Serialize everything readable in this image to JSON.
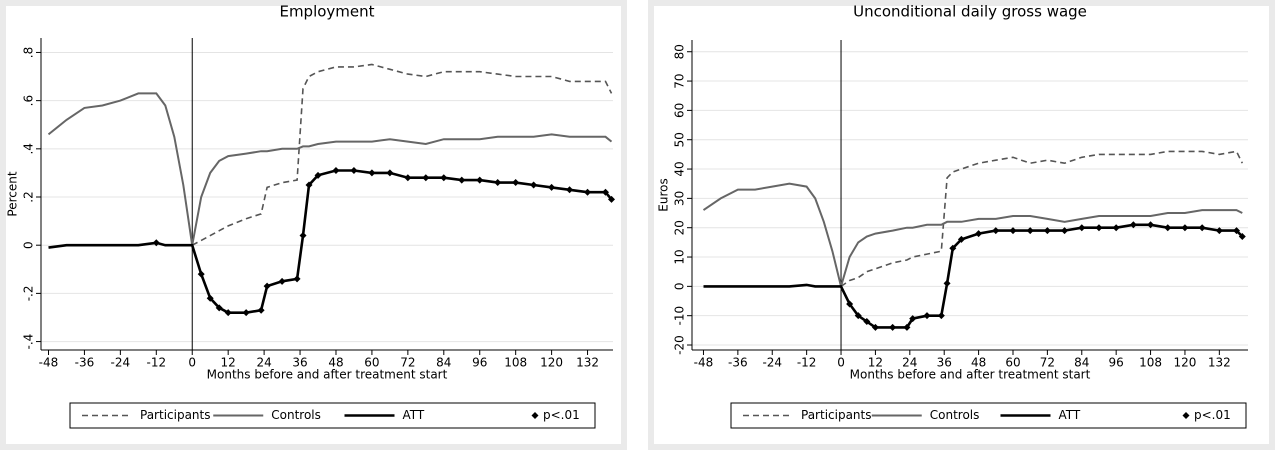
{
  "chart_data": [
    {
      "type": "line",
      "title": "Employment",
      "x_label": "Months before and after treatment start",
      "y_label": "Percent",
      "x": [
        -48,
        -42,
        -36,
        -30,
        -24,
        -18,
        -12,
        -9,
        -6,
        -3,
        0,
        3,
        6,
        9,
        12,
        18,
        23,
        25,
        30,
        35,
        37,
        39,
        42,
        48,
        54,
        60,
        66,
        72,
        78,
        84,
        90,
        96,
        102,
        108,
        114,
        120,
        126,
        132,
        138,
        140
      ],
      "series": [
        {
          "name": "Participants",
          "color": "#555555",
          "line_style": "dashed",
          "values": [
            null,
            null,
            null,
            null,
            null,
            null,
            null,
            null,
            null,
            null,
            0,
            0.02,
            0.04,
            0.06,
            0.08,
            0.11,
            0.13,
            0.24,
            0.26,
            0.27,
            0.65,
            0.7,
            0.72,
            0.74,
            0.74,
            0.75,
            0.73,
            0.71,
            0.7,
            0.72,
            0.72,
            0.72,
            0.71,
            0.7,
            0.7,
            0.7,
            0.68,
            0.68,
            0.68,
            0.63
          ]
        },
        {
          "name": "Controls",
          "color": "#666666",
          "line_style": "solid",
          "values": [
            0.46,
            0.52,
            0.57,
            0.58,
            0.6,
            0.63,
            0.63,
            0.58,
            0.45,
            0.25,
            0,
            0.2,
            0.3,
            0.35,
            0.37,
            0.38,
            0.39,
            0.39,
            0.4,
            0.4,
            0.41,
            0.41,
            0.42,
            0.43,
            0.43,
            0.43,
            0.44,
            0.43,
            0.42,
            0.44,
            0.44,
            0.44,
            0.45,
            0.45,
            0.45,
            0.46,
            0.45,
            0.45,
            0.45,
            0.43
          ]
        },
        {
          "name": "ATT",
          "color": "#000000",
          "line_style": "bold",
          "values": [
            -0.01,
            0,
            0,
            0,
            0,
            0,
            0.01,
            0,
            0,
            0,
            0,
            -0.12,
            -0.22,
            -0.26,
            -0.28,
            -0.28,
            -0.27,
            -0.17,
            -0.15,
            -0.14,
            0.04,
            0.25,
            0.29,
            0.31,
            0.31,
            0.3,
            0.3,
            0.28,
            0.28,
            0.28,
            0.27,
            0.27,
            0.26,
            0.26,
            0.25,
            0.24,
            0.23,
            0.22,
            0.22,
            0.19
          ]
        },
        {
          "name": "p<.01",
          "color": "#000000",
          "line_style": "diamond",
          "values": [
            null,
            null,
            null,
            null,
            null,
            null,
            0.01,
            null,
            null,
            null,
            null,
            -0.12,
            -0.22,
            -0.26,
            -0.28,
            -0.28,
            -0.27,
            -0.17,
            -0.15,
            -0.14,
            0.04,
            0.25,
            0.29,
            0.31,
            0.31,
            0.3,
            0.3,
            0.28,
            0.28,
            0.28,
            0.27,
            0.27,
            0.26,
            0.26,
            0.25,
            0.24,
            0.23,
            0.22,
            0.22,
            0.19
          ]
        }
      ],
      "xlim": [
        -50.5,
        140.5
      ],
      "ylim": [
        -0.435,
        0.86
      ],
      "xticks": [
        -48,
        -36,
        -24,
        -12,
        0,
        12,
        24,
        36,
        48,
        60,
        72,
        84,
        96,
        108,
        120,
        132
      ],
      "yticks": [
        {
          "value": -0.4,
          "label": "-.4"
        },
        {
          "value": -0.2,
          "label": "-.2"
        },
        0,
        {
          "value": 0.2,
          "label": ".2"
        },
        {
          "value": 0.4,
          "label": ".4"
        },
        {
          "value": 0.6,
          "label": ".6"
        },
        {
          "value": 0.8,
          "label": ".8"
        }
      ],
      "grid": true,
      "vline": 0,
      "legend": "bottom"
    },
    {
      "type": "line",
      "title": "Unconditional daily gross wage",
      "x_label": "Months before and after treatment start",
      "y_label": "Euros",
      "x": [
        -48,
        -42,
        -36,
        -30,
        -24,
        -18,
        -12,
        -9,
        -6,
        -3,
        0,
        3,
        6,
        9,
        12,
        18,
        23,
        25,
        30,
        35,
        37,
        39,
        42,
        48,
        54,
        60,
        66,
        72,
        78,
        84,
        90,
        96,
        102,
        108,
        114,
        120,
        126,
        132,
        138,
        140
      ],
      "series": [
        {
          "name": "Participants",
          "color": "#555555",
          "line_style": "dashed",
          "values": [
            null,
            null,
            null,
            null,
            null,
            null,
            null,
            null,
            null,
            null,
            0,
            2,
            3,
            5,
            6,
            8,
            9,
            10,
            11,
            12,
            37,
            39,
            40,
            42,
            43,
            44,
            42,
            43,
            42,
            44,
            45,
            45,
            45,
            45,
            46,
            46,
            46,
            45,
            46,
            42
          ]
        },
        {
          "name": "Controls",
          "color": "#666666",
          "line_style": "solid",
          "values": [
            26,
            30,
            33,
            33,
            34,
            35,
            34,
            30,
            22,
            12,
            0,
            10,
            15,
            17,
            18,
            19,
            20,
            20,
            21,
            21,
            22,
            22,
            22,
            23,
            23,
            24,
            24,
            23,
            22,
            23,
            24,
            24,
            24,
            24,
            25,
            25,
            26,
            26,
            26,
            25
          ]
        },
        {
          "name": "ATT",
          "color": "#000000",
          "line_style": "bold",
          "values": [
            0,
            0,
            0,
            0,
            0,
            0,
            0.5,
            0,
            0,
            0,
            0,
            -6,
            -10,
            -12,
            -14,
            -14,
            -14,
            -11,
            -10,
            -10,
            1,
            13,
            16,
            18,
            19,
            19,
            19,
            19,
            19,
            20,
            20,
            20,
            21,
            21,
            20,
            20,
            20,
            19,
            19,
            17
          ]
        },
        {
          "name": "p<.01",
          "color": "#000000",
          "line_style": "diamond",
          "values": [
            null,
            null,
            null,
            null,
            null,
            null,
            null,
            null,
            null,
            null,
            null,
            -6,
            -10,
            -12,
            -14,
            -14,
            -14,
            -11,
            -10,
            -10,
            1,
            13,
            16,
            18,
            19,
            19,
            19,
            19,
            19,
            20,
            20,
            20,
            21,
            21,
            20,
            20,
            20,
            19,
            19,
            17
          ]
        }
      ],
      "xlim": [
        -52,
        142
      ],
      "ylim": [
        -21.7,
        84
      ],
      "xticks": [
        -48,
        -36,
        -24,
        -12,
        0,
        12,
        24,
        36,
        48,
        60,
        72,
        84,
        96,
        108,
        120,
        132
      ],
      "yticks": [
        -20,
        -10,
        0,
        10,
        20,
        30,
        40,
        50,
        60,
        70,
        80
      ],
      "grid": true,
      "vline": 0,
      "legend": "bottom"
    }
  ]
}
